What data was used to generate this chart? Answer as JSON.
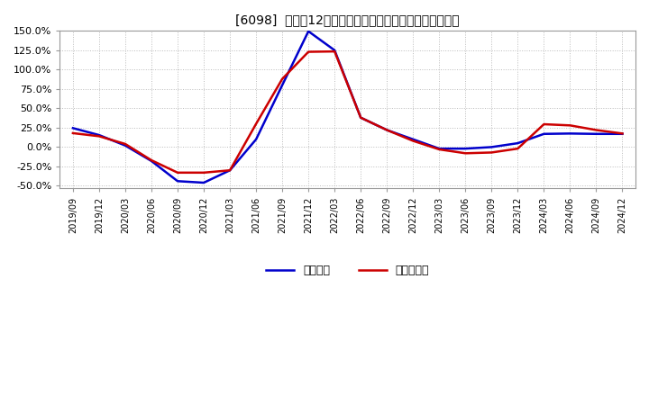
{
  "title": "[6098]  利益だ12か月移動合計の対前年同期増減率の推移",
  "line1_label": "経常利益",
  "line2_label": "当期純利益",
  "line1_color": "#0000cc",
  "line2_color": "#cc0000",
  "ylim": [
    -0.535,
    0.16
  ],
  "yticks": [
    -0.5,
    -0.25,
    0.0,
    0.25,
    0.5,
    0.75,
    1.0,
    1.25,
    1.5
  ],
  "background_color": "#ffffff",
  "grid_color": "#bbbbbb",
  "dates": [
    "2019/09",
    "2019/12",
    "2020/03",
    "2020/06",
    "2020/09",
    "2020/12",
    "2021/03",
    "2021/06",
    "2021/09",
    "2021/12",
    "2022/03",
    "2022/06",
    "2022/09",
    "2022/12",
    "2023/03",
    "2023/06",
    "2023/09",
    "2023/12",
    "2024/03",
    "2024/06",
    "2024/09",
    "2024/12"
  ],
  "line1_values": [
    0.245,
    0.155,
    0.02,
    -0.18,
    -0.44,
    -0.46,
    -0.3,
    0.1,
    0.8,
    1.495,
    1.25,
    0.38,
    0.22,
    0.1,
    -0.02,
    -0.02,
    0.0,
    0.05,
    0.17,
    0.175,
    0.17,
    0.17
  ],
  "line2_values": [
    0.18,
    0.14,
    0.04,
    -0.17,
    -0.33,
    -0.33,
    -0.3,
    0.3,
    0.88,
    1.23,
    1.235,
    0.38,
    0.22,
    0.08,
    -0.03,
    -0.08,
    -0.07,
    -0.02,
    0.295,
    0.28,
    0.22,
    0.175
  ]
}
